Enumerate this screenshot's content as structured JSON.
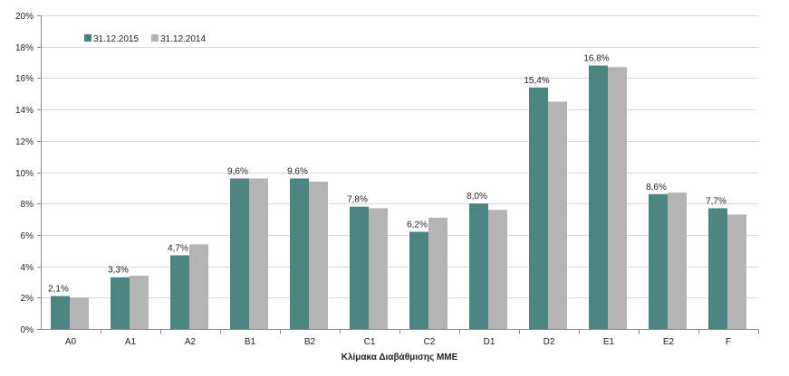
{
  "chart_data": {
    "type": "bar",
    "title": "",
    "xlabel": "Κλίμακα Διαβάθμισης ΜΜΕ",
    "ylabel": "",
    "ylim": [
      0,
      20
    ],
    "yticks": [
      0,
      2,
      4,
      6,
      8,
      10,
      12,
      14,
      16,
      18,
      20
    ],
    "ytick_labels": [
      "0%",
      "2%",
      "4%",
      "6%",
      "8%",
      "10%",
      "12%",
      "14%",
      "16%",
      "18%",
      "20%"
    ],
    "grid": true,
    "legend_position": "top-left",
    "categories": [
      "A0",
      "A1",
      "A2",
      "B1",
      "B2",
      "C1",
      "C2",
      "D1",
      "D2",
      "E1",
      "E2",
      "F"
    ],
    "series": [
      {
        "name": "31.12.2015",
        "color": "#4a8582",
        "values": [
          2.1,
          3.3,
          4.7,
          9.6,
          9.6,
          7.8,
          6.2,
          8.0,
          15.4,
          16.8,
          8.6,
          7.7
        ],
        "data_labels": [
          "2,1%",
          "3,3%",
          "4,7%",
          "9,6%",
          "9,6%",
          "7,8%",
          "6,2%",
          "8,0%",
          "15,4%",
          "16,8%",
          "8,6%",
          "7,7%"
        ]
      },
      {
        "name": "31.12.2014",
        "color": "#b4b4b4",
        "values": [
          2.0,
          3.4,
          5.4,
          9.6,
          9.4,
          7.7,
          7.1,
          7.6,
          14.5,
          16.7,
          8.7,
          7.3
        ]
      }
    ]
  }
}
